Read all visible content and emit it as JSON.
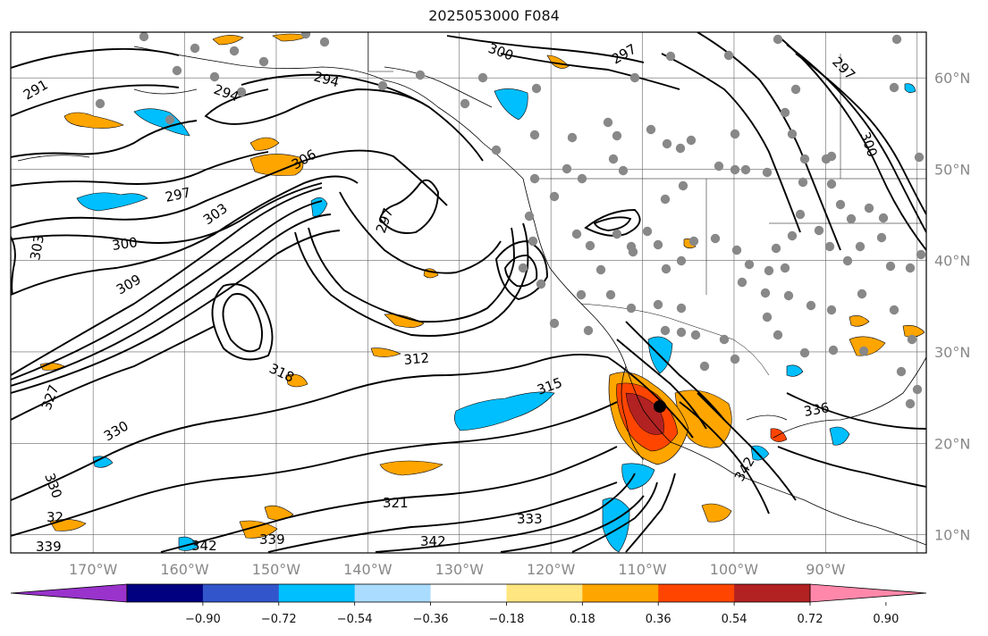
{
  "title": "2025053000 F084",
  "map": {
    "lat_labels": [
      {
        "lat": 60,
        "label": "60°N"
      },
      {
        "lat": 50,
        "label": "50°N"
      },
      {
        "lat": 40,
        "label": "40°N"
      },
      {
        "lat": 30,
        "label": "30°N"
      },
      {
        "lat": 20,
        "label": "20°N"
      },
      {
        "lat": 10,
        "label": "10°N"
      }
    ],
    "lon_labels": [
      {
        "lon": -170,
        "label": "170°W"
      },
      {
        "lon": -160,
        "label": "160°W"
      },
      {
        "lon": -150,
        "label": "150°W"
      },
      {
        "lon": -140,
        "label": "140°W"
      },
      {
        "lon": -130,
        "label": "130°W"
      },
      {
        "lon": -120,
        "label": "120°W"
      },
      {
        "lon": -110,
        "label": "110°W"
      },
      {
        "lon": -100,
        "label": "100°W"
      },
      {
        "lon": -90,
        "label": "90°W"
      }
    ],
    "extent": {
      "lon_min": -179,
      "lon_max": -79,
      "lat_min": 8,
      "lat_max": 65
    },
    "contour_labels": [
      "291",
      "294",
      "297",
      "300",
      "303",
      "306",
      "309",
      "312",
      "315",
      "318",
      "321",
      "327",
      "330",
      "333",
      "336",
      "339",
      "342",
      "32"
    ],
    "tick_label_color": "#888888"
  },
  "colorbar": {
    "colors": [
      "#9933cc",
      "#000080",
      "#3355cc",
      "#00bfff",
      "#aadcff",
      "#ffffff",
      "#ffe680",
      "#ffa500",
      "#ff4500",
      "#b22222",
      "#ff88aa"
    ],
    "tick_labels": [
      "−0.90",
      "−0.72",
      "−0.54",
      "−0.36",
      "−0.18",
      "0.18",
      "0.36",
      "0.54",
      "0.72",
      "0.90"
    ]
  }
}
